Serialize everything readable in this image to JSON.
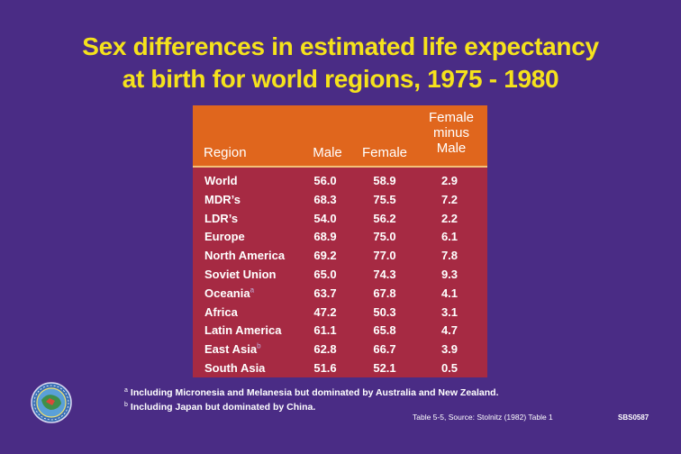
{
  "title": {
    "line1": "Sex differences in estimated life expectancy",
    "line2": "at birth for world regions, 1975 - 1980"
  },
  "table": {
    "headers": {
      "region": "Region",
      "male": "Male",
      "female": "Female",
      "diff_line1": "Female",
      "diff_line2": "minus",
      "diff_line3": "Male"
    },
    "rows": [
      {
        "region": "World",
        "sup": "",
        "male": "56.0",
        "female": "58.9",
        "diff": "2.9"
      },
      {
        "region": "MDR’s",
        "sup": "",
        "male": "68.3",
        "female": "75.5",
        "diff": "7.2"
      },
      {
        "region": "LDR’s",
        "sup": "",
        "male": "54.0",
        "female": "56.2",
        "diff": "2.2"
      },
      {
        "region": "Europe",
        "sup": "",
        "male": "68.9",
        "female": "75.0",
        "diff": "6.1"
      },
      {
        "region": "North America",
        "sup": "",
        "male": "69.2",
        "female": "77.0",
        "diff": "7.8"
      },
      {
        "region": "Soviet Union",
        "sup": "",
        "male": "65.0",
        "female": "74.3",
        "diff": "9.3"
      },
      {
        "region": "Oceania",
        "sup": "a",
        "male": "63.7",
        "female": "67.8",
        "diff": "4.1"
      },
      {
        "region": "Africa",
        "sup": "",
        "male": "47.2",
        "female": "50.3",
        "diff": "3.1"
      },
      {
        "region": "Latin America",
        "sup": "",
        "male": "61.1",
        "female": "65.8",
        "diff": "4.7"
      },
      {
        "region": "East Asia",
        "sup": "b",
        "male": "62.8",
        "female": "66.7",
        "diff": "3.9"
      },
      {
        "region": "South Asia",
        "sup": "",
        "male": "51.6",
        "female": "52.1",
        "diff": "0.5"
      }
    ]
  },
  "footnotes": [
    {
      "mark": "a",
      "text": "Including Micronesia and Melanesia but dominated by Australia and New Zealand."
    },
    {
      "mark": "b",
      "text": "Including Japan but dominated by China."
    }
  ],
  "source": "Table 5-5,  Source: Stolnitz (1982)  Table 1",
  "slide_code": "SBS0587",
  "colors": {
    "background": "#4a2c85",
    "title": "#f5e21c",
    "table_body": "#a62a43",
    "table_header": "#e0661d"
  }
}
